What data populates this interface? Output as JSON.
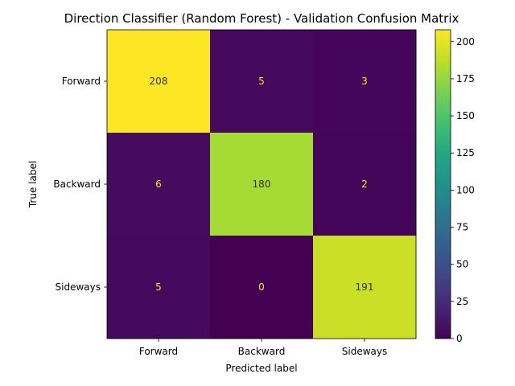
{
  "chart_data": {
    "type": "heatmap",
    "title": "Direction Classifier (Random Forest) - Validation Confusion Matrix",
    "xlabel": "Predicted label",
    "ylabel": "True label",
    "x_categories": [
      "Forward",
      "Backward",
      "Sideways"
    ],
    "y_categories": [
      "Forward",
      "Backward",
      "Sideways"
    ],
    "values": [
      [
        208,
        5,
        3
      ],
      [
        6,
        180,
        2
      ],
      [
        5,
        0,
        191
      ]
    ],
    "colormap": "viridis",
    "vmin": 0,
    "vmax": 208,
    "colorbar_ticks": [
      0,
      25,
      50,
      75,
      100,
      125,
      150,
      175,
      200
    ],
    "colorbar_tick_labels": [
      "0",
      "25",
      "50",
      "75",
      "100",
      "125",
      "150",
      "175",
      "200"
    ]
  }
}
